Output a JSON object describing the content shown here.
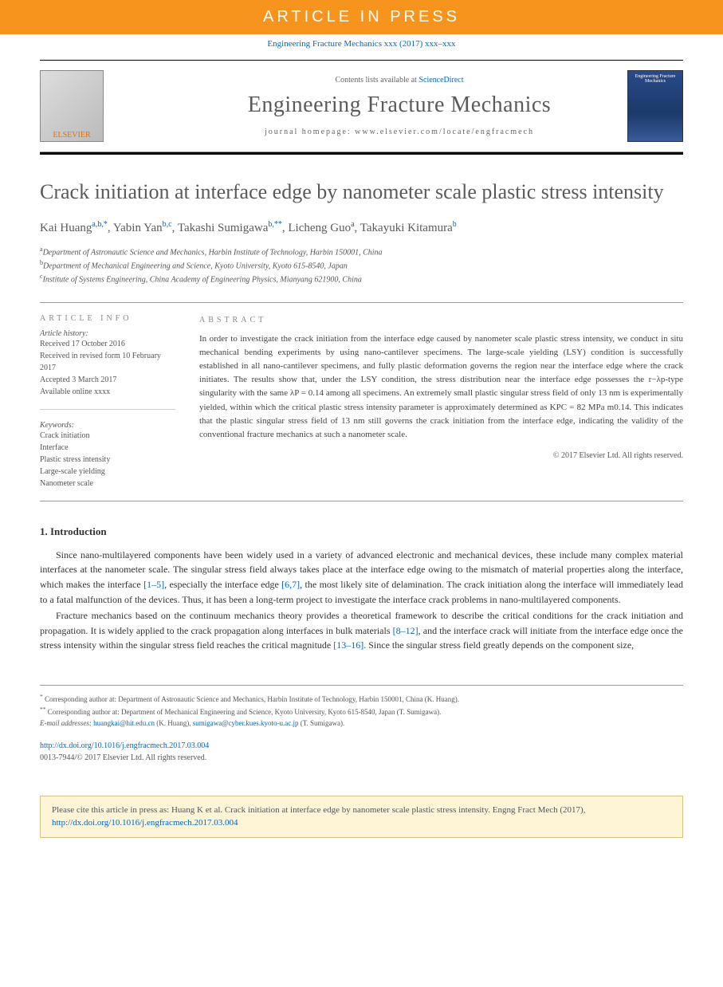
{
  "banner": {
    "text": "ARTICLE IN PRESS"
  },
  "citation": {
    "text": "Engineering Fracture Mechanics xxx (2017) xxx–xxx"
  },
  "header": {
    "contents_prefix": "Contents lists available at ",
    "contents_link": "ScienceDirect",
    "journal_name": "Engineering Fracture Mechanics",
    "homepage": "journal homepage: www.elsevier.com/locate/engfracmech",
    "elsevier": "ELSEVIER",
    "cover_text": "Engineering Fracture Mechanics"
  },
  "title": "Crack initiation at interface edge by nanometer scale plastic stress intensity",
  "authors": [
    {
      "name": "Kai Huang",
      "sup": "a,b,*"
    },
    {
      "name": "Yabin Yan",
      "sup": "b,c"
    },
    {
      "name": "Takashi Sumigawa",
      "sup": "b,**"
    },
    {
      "name": "Licheng Guo",
      "sup": "a"
    },
    {
      "name": "Takayuki Kitamura",
      "sup": "b"
    }
  ],
  "affiliations": [
    {
      "sup": "a",
      "text": "Department of Astronautic Science and Mechanics, Harbin Institute of Technology, Harbin 150001, China"
    },
    {
      "sup": "b",
      "text": "Department of Mechanical Engineering and Science, Kyoto University, Kyoto 615-8540, Japan"
    },
    {
      "sup": "c",
      "text": "Institute of Systems Engineering, China Academy of Engineering Physics, Mianyang 621900, China"
    }
  ],
  "article_info": {
    "header": "ARTICLE INFO",
    "history_label": "Article history:",
    "received": "Received 17 October 2016",
    "revised": "Received in revised form 10 February 2017",
    "accepted": "Accepted 3 March 2017",
    "online": "Available online xxxx",
    "keywords_label": "Keywords:",
    "keywords": [
      "Crack initiation",
      "Interface",
      "Plastic stress intensity",
      "Large-scale yielding",
      "Nanometer scale"
    ]
  },
  "abstract": {
    "header": "ABSTRACT",
    "text": "In order to investigate the crack initiation from the interface edge caused by nanometer scale plastic stress intensity, we conduct in situ mechanical bending experiments by using nano-cantilever specimens. The large-scale yielding (LSY) condition is successfully established in all nano-cantilever specimens, and fully plastic deformation governs the region near the interface edge where the crack initiates. The results show that, under the LSY condition, the stress distribution near the interface edge possesses the r−λp-type singularity with the same λP = 0.14 among all specimens. An extremely small plastic singular stress field of only 13 nm is experimentally yielded, within which the critical plastic stress intensity parameter is approximately determined as KPC = 82 MPa m0.14. This indicates that the plastic singular stress field of 13 nm still governs the crack initiation from the interface edge, indicating the validity of the conventional fracture mechanics at such a nanometer scale.",
    "copyright": "© 2017 Elsevier Ltd. All rights reserved."
  },
  "intro": {
    "heading": "1. Introduction",
    "p1_a": "Since nano-multilayered components have been widely used in a variety of advanced electronic and mechanical devices, these include many complex material interfaces at the nanometer scale. The singular stress field always takes place at the interface edge owing to the mismatch of material properties along the interface, which makes the interface ",
    "ref1": "[1–5]",
    "p1_b": ", especially the interface edge ",
    "ref2": "[6,7]",
    "p1_c": ", the most likely site of delamination. The crack initiation along the interface will immediately lead to a fatal malfunction of the devices. Thus, it has been a long-term project to investigate the interface crack problems in nano-multilayered components.",
    "p2_a": "Fracture mechanics based on the continuum mechanics theory provides a theoretical framework to describe the critical conditions for the crack initiation and propagation. It is widely applied to the crack propagation along interfaces in bulk materials ",
    "ref3": "[8–12]",
    "p2_b": ", and the interface crack will initiate from the interface edge once the stress intensity within the singular stress field reaches the critical magnitude ",
    "ref4": "[13–16]",
    "p2_c": ". Since the singular stress field greatly depends on the component size,"
  },
  "footnotes": {
    "corr1_sup": "*",
    "corr1": "Corresponding author at: Department of Astronautic Science and Mechanics, Harbin Institute of Technology, Harbin 150001, China (K. Huang).",
    "corr2_sup": "**",
    "corr2": "Corresponding author at: Department of Mechanical Engineering and Science, Kyoto University, Kyoto 615-8540, Japan (T. Sumigawa).",
    "email_label": "E-mail addresses: ",
    "email1": "huangkai@hit.edu.cn",
    "email1_name": " (K. Huang), ",
    "email2": "sumigawa@cyber.kues.kyoto-u.ac.jp",
    "email2_name": " (T. Sumigawa)."
  },
  "doi": {
    "link": "http://dx.doi.org/10.1016/j.engfracmech.2017.03.004",
    "issn": "0013-7944/© 2017 Elsevier Ltd. All rights reserved."
  },
  "citebox": {
    "text_a": "Please cite this article in press as: Huang K et al. Crack initiation at interface edge by nanometer scale plastic stress intensity. Engng Fract Mech (2017), ",
    "link": "http://dx.doi.org/10.1016/j.engfracmech.2017.03.004"
  },
  "colors": {
    "orange_banner": "#f7941e",
    "link_blue": "#0066cc",
    "title_gray": "#5a5a5a",
    "citebox_bg": "#fef4d6",
    "citebox_border": "#d4c284"
  }
}
